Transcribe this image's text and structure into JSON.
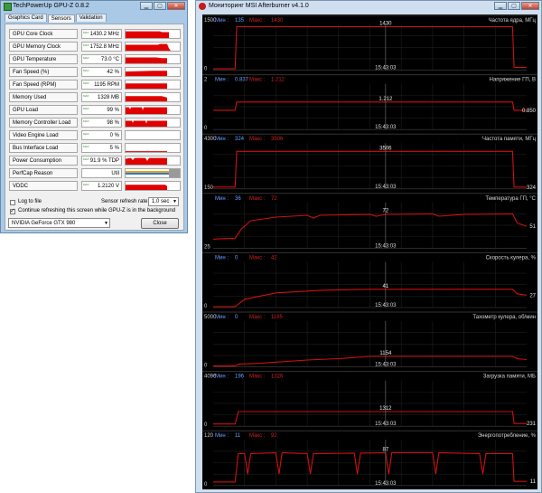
{
  "gpuz": {
    "title": "TechPowerUp GPU-Z 0.8.2",
    "tabs": [
      "Graphics Card",
      "Sensors",
      "Validation"
    ],
    "sensors": [
      {
        "label": "GPU Core Clock",
        "value": "1430.2 MHz",
        "max": "MAX"
      },
      {
        "label": "GPU Memory Clock",
        "value": "1752.8 MHz",
        "max": "MAX"
      },
      {
        "label": "GPU Temperature",
        "value": "73.0 °C",
        "max": "MAX"
      },
      {
        "label": "Fan Speed (%)",
        "value": "42 %",
        "max": "MAX"
      },
      {
        "label": "Fan Speed (RPM)",
        "value": "1195 RPM",
        "max": "MAX"
      },
      {
        "label": "Memory Used",
        "value": "1328 MB",
        "max": "MAX"
      },
      {
        "label": "GPU Load",
        "value": "99 %",
        "max": "MAX"
      },
      {
        "label": "Memory Controller Load",
        "value": "98 %",
        "max": "MAX"
      },
      {
        "label": "Video Engine Load",
        "value": "0 %",
        "max": "MAX"
      },
      {
        "label": "Bus Interface Load",
        "value": "5 %",
        "max": "MAX"
      },
      {
        "label": "Power Consumption",
        "value": "91.9 % TDP",
        "max": "MAX"
      },
      {
        "label": "PerfCap Reason",
        "value": "Util",
        "max": ""
      },
      {
        "label": "VDDC",
        "value": "1.2120 V",
        "max": "MAX"
      }
    ],
    "log_to_file": "Log to file",
    "refresh_label": "Sensor refresh rate:",
    "refresh_value": "1.0 sec",
    "continue_refresh": "Continue refreshing this screen while GPU-Z is in the background",
    "gpu_select": "NVIDIA GeForce GTX 980",
    "close_button": "Close"
  },
  "afterburner": {
    "title": "Мониторинг MSI Afterburner v4.1.0",
    "min_prefix": "Мин : ",
    "max_prefix": "Макс : ",
    "graphs": [
      {
        "title": "Частота ядра, МГц",
        "ymax": "1500",
        "ymin": "0",
        "min": "135",
        "max": "1430",
        "peak_label": "1430",
        "end_label": "",
        "time": "15:43:03"
      },
      {
        "title": "Напряжение ГП, В",
        "ymax": "2",
        "ymin": "0",
        "min": "0.837",
        "max": "1.212",
        "peak_label": "1.212",
        "end_label": "0.850",
        "time": "15:43:03"
      },
      {
        "title": "Частота памяти, МГц",
        "ymax": "4300",
        "ymin": "150",
        "min": "324",
        "max": "3506",
        "peak_label": "3506",
        "end_label": "324",
        "time": "15:43:03"
      },
      {
        "title": "Температура ГП, °С",
        "ymax": "",
        "ymin": "25",
        "min": "36",
        "max": "72",
        "peak_label": "72",
        "end_label": "51",
        "time": "15:43:03"
      },
      {
        "title": "Скорость кулера, %",
        "ymax": "",
        "ymin": "0",
        "min": "0",
        "max": "42",
        "peak_label": "41",
        "end_label": "27",
        "time": "15:43:03"
      },
      {
        "title": "Тахометр кулера, об/мин",
        "ymax": "5000",
        "ymin": "0",
        "min": "0",
        "max": "1195",
        "peak_label": "1154",
        "end_label": "",
        "time": "15:43:03"
      },
      {
        "title": "Загрузка памяти, МБ",
        "ymax": "4096",
        "ymin": "0",
        "min": "196",
        "max": "1326",
        "peak_label": "1312",
        "end_label": "231",
        "time": "15:43:03"
      },
      {
        "title": "Энергопотребление, %",
        "ymax": "120",
        "ymin": "0",
        "min": "11",
        "max": "92",
        "peak_label": "87",
        "end_label": "11",
        "time": "15:43:03"
      }
    ]
  }
}
